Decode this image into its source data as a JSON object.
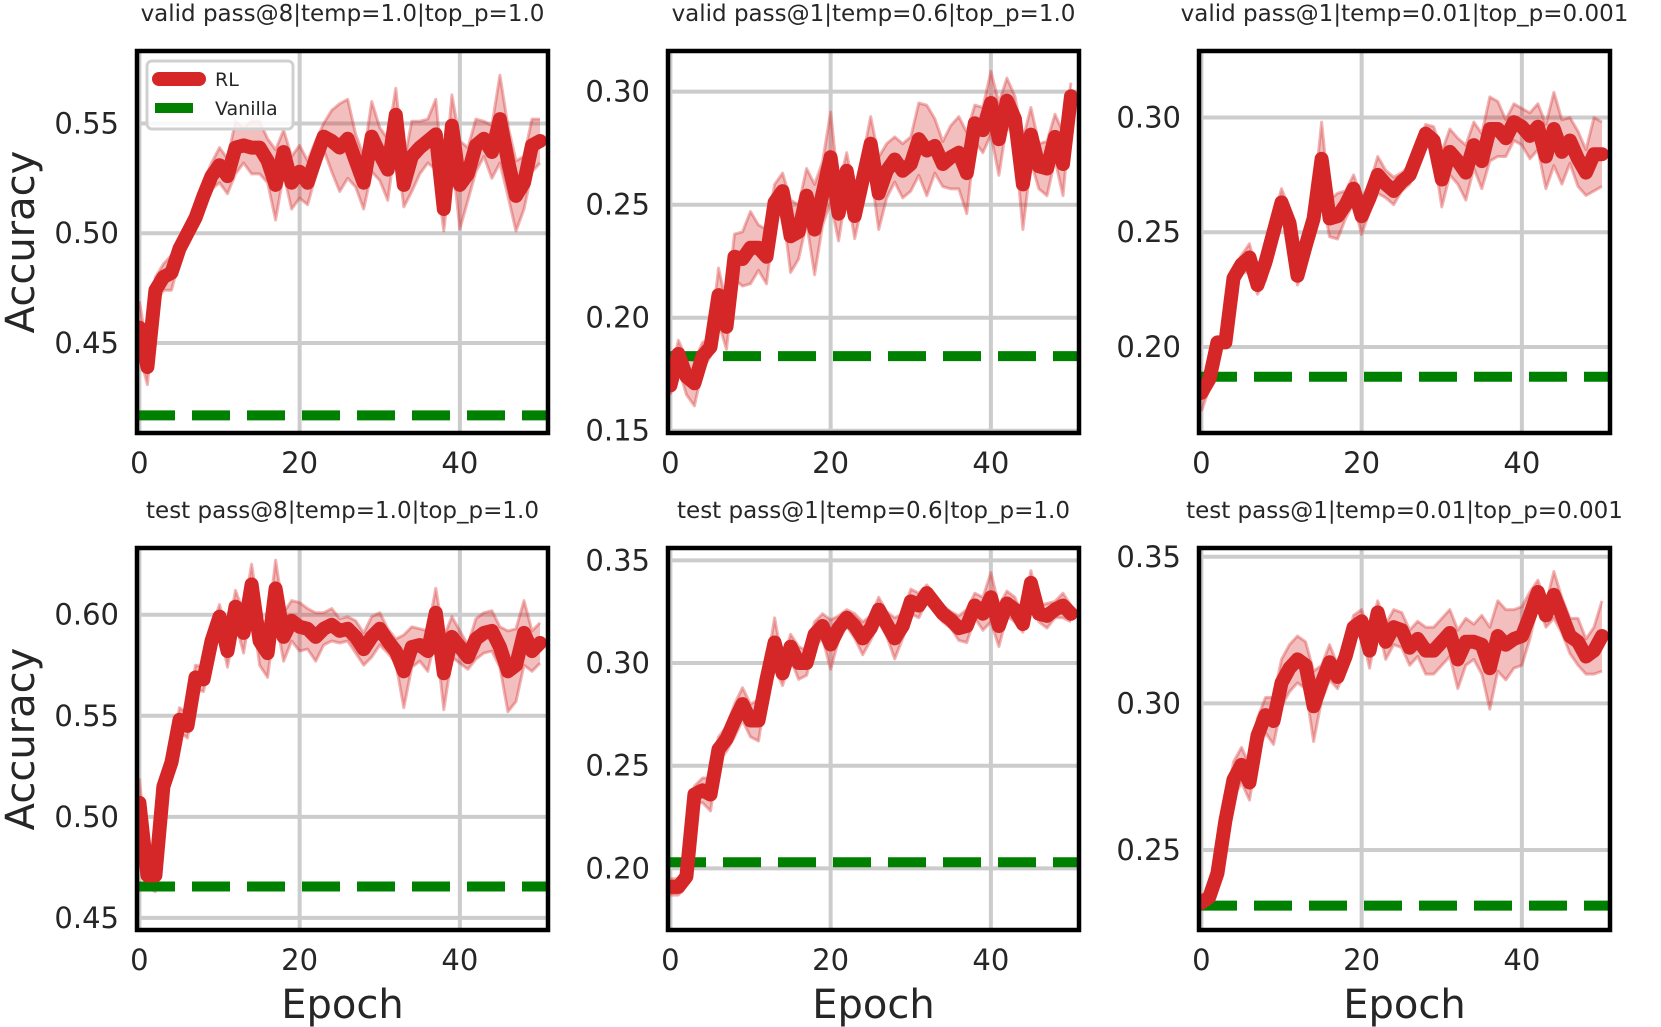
{
  "colors": {
    "rl": "#d62728",
    "vanilla": "#008000",
    "grid": "#cccccc",
    "frame": "#000000"
  },
  "legend": {
    "items": [
      {
        "label": "RL",
        "style": "solid"
      },
      {
        "label": "Vanilla",
        "style": "dashed"
      }
    ],
    "placement": "upper-left",
    "panel": 0
  },
  "chart_data": [
    {
      "type": "line",
      "title": "valid pass@8|temp=1.0|top_p=1.0",
      "xlabel": "",
      "ylabel": "Accuracy",
      "xlim": [
        -0.3,
        51
      ],
      "ylim": [
        0.409,
        0.583
      ],
      "xticks": [
        0,
        20,
        40
      ],
      "yticks": [
        0.45,
        0.5,
        0.55
      ],
      "grid": true,
      "vanilla": 0.417,
      "rl_mean": [
        0.457,
        0.439,
        0.474,
        0.48,
        0.482,
        0.493,
        0.5,
        0.507,
        0.517,
        0.526,
        0.531,
        0.526,
        0.539,
        0.54,
        0.539,
        0.539,
        0.533,
        0.522,
        0.537,
        0.523,
        0.528,
        0.523,
        0.534,
        0.544,
        0.542,
        0.539,
        0.543,
        0.533,
        0.523,
        0.544,
        0.536,
        0.529,
        0.554,
        0.522,
        0.535,
        0.539,
        0.542,
        0.545,
        0.511,
        0.549,
        0.522,
        0.527,
        0.54,
        0.543,
        0.537,
        0.552,
        0.533,
        0.517,
        0.523,
        0.54,
        0.542
      ],
      "rl_std": [
        0.012,
        0.008,
        0.006,
        0.006,
        0.008,
        0.005,
        0.004,
        0.004,
        0.006,
        0.006,
        0.008,
        0.008,
        0.012,
        0.008,
        0.012,
        0.012,
        0.01,
        0.016,
        0.01,
        0.012,
        0.012,
        0.01,
        0.008,
        0.006,
        0.014,
        0.02,
        0.018,
        0.012,
        0.012,
        0.016,
        0.012,
        0.014,
        0.012,
        0.01,
        0.016,
        0.012,
        0.01,
        0.016,
        0.01,
        0.014,
        0.02,
        0.012,
        0.012,
        0.008,
        0.012,
        0.02,
        0.016,
        0.016,
        0.012,
        0.012,
        0.01
      ]
    },
    {
      "type": "line",
      "title": "valid pass@1|temp=0.6|top_p=1.0",
      "xlabel": "",
      "ylabel": "",
      "xlim": [
        -0.3,
        51
      ],
      "ylim": [
        0.149,
        0.318
      ],
      "xticks": [
        0,
        20,
        40
      ],
      "yticks": [
        0.15,
        0.2,
        0.25,
        0.3
      ],
      "grid": true,
      "vanilla": 0.183,
      "rl_mean": [
        0.17,
        0.184,
        0.174,
        0.171,
        0.183,
        0.187,
        0.21,
        0.196,
        0.227,
        0.226,
        0.231,
        0.231,
        0.227,
        0.251,
        0.256,
        0.236,
        0.238,
        0.254,
        0.239,
        0.255,
        0.271,
        0.246,
        0.265,
        0.245,
        0.261,
        0.277,
        0.255,
        0.265,
        0.27,
        0.265,
        0.268,
        0.279,
        0.274,
        0.276,
        0.268,
        0.271,
        0.273,
        0.264,
        0.286,
        0.283,
        0.295,
        0.279,
        0.296,
        0.288,
        0.259,
        0.281,
        0.267,
        0.266,
        0.28,
        0.268,
        0.298
      ],
      "rl_std": [
        0.004,
        0.006,
        0.008,
        0.01,
        0.006,
        0.004,
        0.012,
        0.01,
        0.01,
        0.012,
        0.016,
        0.01,
        0.012,
        0.008,
        0.008,
        0.016,
        0.012,
        0.012,
        0.02,
        0.014,
        0.02,
        0.012,
        0.008,
        0.01,
        0.01,
        0.012,
        0.016,
        0.012,
        0.01,
        0.012,
        0.012,
        0.016,
        0.02,
        0.012,
        0.01,
        0.014,
        0.016,
        0.018,
        0.008,
        0.01,
        0.014,
        0.016,
        0.01,
        0.01,
        0.02,
        0.012,
        0.01,
        0.012,
        0.01,
        0.014,
        0.006
      ]
    },
    {
      "type": "line",
      "title": "valid pass@1|temp=0.01|top_p=0.001",
      "xlabel": "",
      "ylabel": "",
      "xlim": [
        -0.3,
        51
      ],
      "ylim": [
        0.1625,
        0.329
      ],
      "xticks": [
        0,
        20,
        40
      ],
      "yticks": [
        0.2,
        0.25,
        0.3
      ],
      "grid": true,
      "vanilla": 0.187,
      "rl_mean": [
        0.18,
        0.186,
        0.202,
        0.202,
        0.23,
        0.236,
        0.239,
        0.227,
        0.237,
        0.25,
        0.263,
        0.254,
        0.231,
        0.244,
        0.256,
        0.282,
        0.256,
        0.257,
        0.262,
        0.269,
        0.257,
        0.265,
        0.275,
        0.271,
        0.268,
        0.272,
        0.275,
        0.284,
        0.293,
        0.29,
        0.273,
        0.285,
        0.281,
        0.276,
        0.288,
        0.281,
        0.295,
        0.295,
        0.291,
        0.298,
        0.296,
        0.292,
        0.296,
        0.283,
        0.295,
        0.285,
        0.29,
        0.282,
        0.276,
        0.284,
        0.284
      ],
      "rl_std": [
        0.008,
        0.004,
        0.002,
        0.002,
        0.004,
        0.004,
        0.006,
        0.004,
        0.008,
        0.006,
        0.006,
        0.006,
        0.004,
        0.006,
        0.008,
        0.016,
        0.008,
        0.01,
        0.006,
        0.006,
        0.008,
        0.006,
        0.008,
        0.006,
        0.006,
        0.004,
        0.004,
        0.004,
        0.004,
        0.006,
        0.012,
        0.01,
        0.01,
        0.012,
        0.01,
        0.012,
        0.014,
        0.012,
        0.008,
        0.008,
        0.008,
        0.01,
        0.01,
        0.014,
        0.016,
        0.014,
        0.01,
        0.012,
        0.01,
        0.016,
        0.014
      ]
    },
    {
      "type": "line",
      "title": "test pass@8|temp=1.0|top_p=1.0",
      "xlabel": "Epoch",
      "ylabel": "Accuracy",
      "xlim": [
        -0.3,
        51
      ],
      "ylim": [
        0.444,
        0.633
      ],
      "xticks": [
        0,
        20,
        40
      ],
      "yticks": [
        0.45,
        0.5,
        0.55,
        0.6
      ],
      "grid": true,
      "vanilla": 0.4655,
      "rl_mean": [
        0.507,
        0.471,
        0.471,
        0.515,
        0.527,
        0.548,
        0.545,
        0.569,
        0.568,
        0.587,
        0.599,
        0.582,
        0.604,
        0.591,
        0.615,
        0.587,
        0.581,
        0.613,
        0.589,
        0.597,
        0.594,
        0.593,
        0.589,
        0.593,
        0.595,
        0.592,
        0.593,
        0.589,
        0.583,
        0.589,
        0.593,
        0.587,
        0.582,
        0.572,
        0.584,
        0.585,
        0.582,
        0.601,
        0.571,
        0.589,
        0.584,
        0.579,
        0.588,
        0.591,
        0.592,
        0.584,
        0.572,
        0.575,
        0.591,
        0.582,
        0.586
      ],
      "rl_std": [
        0.012,
        0.006,
        0.008,
        0.006,
        0.006,
        0.006,
        0.006,
        0.006,
        0.006,
        0.006,
        0.006,
        0.008,
        0.008,
        0.01,
        0.01,
        0.012,
        0.012,
        0.014,
        0.012,
        0.01,
        0.012,
        0.01,
        0.012,
        0.008,
        0.008,
        0.006,
        0.006,
        0.008,
        0.008,
        0.01,
        0.008,
        0.006,
        0.006,
        0.018,
        0.01,
        0.008,
        0.01,
        0.012,
        0.018,
        0.01,
        0.008,
        0.006,
        0.01,
        0.01,
        0.01,
        0.01,
        0.02,
        0.018,
        0.016,
        0.01,
        0.01
      ]
    },
    {
      "type": "line",
      "title": "test pass@1|temp=0.6|top_p=1.0",
      "xlabel": "Epoch",
      "ylabel": "",
      "xlim": [
        -0.3,
        51
      ],
      "ylim": [
        0.17,
        0.356
      ],
      "xticks": [
        0,
        20,
        40
      ],
      "yticks": [
        0.2,
        0.25,
        0.3,
        0.35
      ],
      "grid": true,
      "vanilla": 0.203,
      "rl_mean": [
        0.191,
        0.191,
        0.196,
        0.236,
        0.238,
        0.236,
        0.258,
        0.263,
        0.272,
        0.28,
        0.272,
        0.272,
        0.292,
        0.31,
        0.295,
        0.308,
        0.3,
        0.3,
        0.314,
        0.318,
        0.309,
        0.317,
        0.322,
        0.318,
        0.312,
        0.317,
        0.326,
        0.319,
        0.312,
        0.318,
        0.33,
        0.328,
        0.334,
        0.329,
        0.324,
        0.321,
        0.317,
        0.318,
        0.328,
        0.324,
        0.332,
        0.318,
        0.329,
        0.326,
        0.319,
        0.339,
        0.324,
        0.323,
        0.326,
        0.328,
        0.324
      ],
      "rl_std": [
        0.004,
        0.004,
        0.004,
        0.004,
        0.006,
        0.008,
        0.006,
        0.006,
        0.008,
        0.008,
        0.008,
        0.01,
        0.006,
        0.012,
        0.006,
        0.006,
        0.008,
        0.006,
        0.006,
        0.006,
        0.012,
        0.006,
        0.004,
        0.006,
        0.008,
        0.006,
        0.006,
        0.006,
        0.01,
        0.006,
        0.006,
        0.006,
        0.004,
        0.004,
        0.004,
        0.004,
        0.006,
        0.008,
        0.006,
        0.008,
        0.012,
        0.01,
        0.006,
        0.006,
        0.004,
        0.006,
        0.004,
        0.006,
        0.004,
        0.006,
        0.004
      ]
    },
    {
      "type": "line",
      "title": "test pass@1|temp=0.01|top_p=0.001",
      "xlabel": "Epoch",
      "ylabel": "",
      "xlim": [
        -0.3,
        51
      ],
      "ylim": [
        0.2227,
        0.353
      ],
      "xticks": [
        0,
        20,
        40
      ],
      "yticks": [
        0.25,
        0.3,
        0.35
      ],
      "grid": true,
      "vanilla": 0.231,
      "rl_mean": [
        0.232,
        0.234,
        0.242,
        0.26,
        0.274,
        0.279,
        0.273,
        0.289,
        0.296,
        0.294,
        0.307,
        0.312,
        0.315,
        0.313,
        0.299,
        0.307,
        0.314,
        0.309,
        0.316,
        0.326,
        0.328,
        0.318,
        0.331,
        0.321,
        0.326,
        0.325,
        0.319,
        0.322,
        0.318,
        0.318,
        0.321,
        0.324,
        0.315,
        0.321,
        0.321,
        0.32,
        0.312,
        0.323,
        0.32,
        0.322,
        0.323,
        0.33,
        0.338,
        0.33,
        0.337,
        0.33,
        0.323,
        0.321,
        0.316,
        0.318,
        0.323
      ],
      "rl_std": [
        0.002,
        0.002,
        0.004,
        0.004,
        0.006,
        0.006,
        0.006,
        0.006,
        0.006,
        0.008,
        0.008,
        0.008,
        0.008,
        0.008,
        0.012,
        0.006,
        0.006,
        0.004,
        0.004,
        0.004,
        0.004,
        0.006,
        0.004,
        0.006,
        0.006,
        0.006,
        0.006,
        0.006,
        0.008,
        0.008,
        0.008,
        0.008,
        0.01,
        0.008,
        0.006,
        0.01,
        0.014,
        0.012,
        0.012,
        0.01,
        0.01,
        0.008,
        0.004,
        0.004,
        0.008,
        0.006,
        0.006,
        0.008,
        0.006,
        0.008,
        0.012
      ]
    }
  ]
}
